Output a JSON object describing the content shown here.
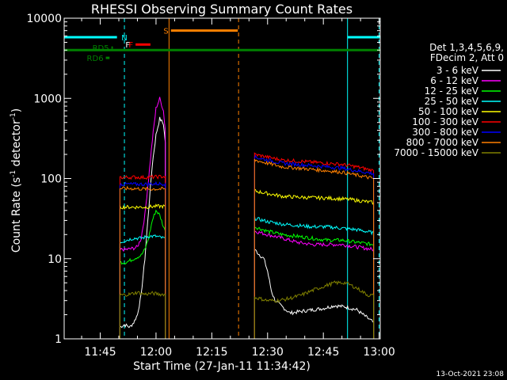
{
  "chart_data": {
    "type": "line",
    "title": "RHESSI Observing Summary Count Rates",
    "xlabel": "Start Time (27-Jan-11 11:34:42)",
    "ylabel_main": "Count Rate (s",
    "ylabel_sup1": "-1",
    "ylabel_mid": " detector",
    "ylabel_sup2": "-1",
    "ylabel_end": ")",
    "y_scale": "log",
    "ylim": [
      1,
      10000
    ],
    "xlim_minutes": [
      -24.7,
      60.3
    ],
    "x_ticks": [
      {
        "t": -15,
        "label": "11:45"
      },
      {
        "t": 0,
        "label": "12:00"
      },
      {
        "t": 15,
        "label": "12:15"
      },
      {
        "t": 30,
        "label": "12:30"
      },
      {
        "t": 45,
        "label": "12:45"
      },
      {
        "t": 60,
        "label": "13:00"
      }
    ],
    "y_ticks": [
      {
        "v": 1,
        "label": "1"
      },
      {
        "v": 10,
        "label": "10"
      },
      {
        "v": 100,
        "label": "100"
      },
      {
        "v": 1000,
        "label": "1000"
      },
      {
        "v": 10000,
        "label": "10000"
      }
    ],
    "legend_position": "right",
    "legend_header": [
      "Det 1,3,4,5,6,9,",
      "FDecim 2, Att 0"
    ],
    "series": [
      {
        "name": "3 - 6 keV",
        "color": "#ffffff",
        "segments": [
          [
            [
              -9.7,
              1.4
            ],
            [
              -8.5,
              1.5
            ],
            [
              -7,
              1.4
            ],
            [
              -6,
              1.6
            ],
            [
              -5,
              2.0
            ],
            [
              -4,
              3.5
            ],
            [
              -3,
              10
            ],
            [
              -2,
              40
            ],
            [
              -1,
              150
            ],
            [
              0,
              350
            ],
            [
              1,
              560
            ],
            [
              2,
              480
            ],
            [
              2.5,
              280
            ]
          ],
          [
            [
              26.5,
              13
            ],
            [
              28,
              11
            ],
            [
              29,
              10
            ],
            [
              30,
              7
            ],
            [
              31,
              4
            ],
            [
              32,
              3
            ],
            [
              34,
              2.5
            ],
            [
              36,
              2.1
            ],
            [
              39,
              2.2
            ],
            [
              42,
              2.3
            ],
            [
              45,
              2.4
            ],
            [
              48,
              2.6
            ],
            [
              51,
              2.5
            ],
            [
              54,
              2.3
            ],
            [
              57,
              1.8
            ],
            [
              58.5,
              1.6
            ]
          ]
        ]
      },
      {
        "name": "6 - 12 keV",
        "color": "#ff00ff",
        "segments": [
          [
            [
              -9.7,
              13
            ],
            [
              -8,
              13
            ],
            [
              -6,
              13.5
            ],
            [
              -5,
              14
            ],
            [
              -4,
              18
            ],
            [
              -3,
              35
            ],
            [
              -2,
              100
            ],
            [
              -1,
              300
            ],
            [
              0,
              750
            ],
            [
              1,
              1000
            ],
            [
              2,
              700
            ],
            [
              2.5,
              400
            ]
          ],
          [
            [
              26.5,
              22
            ],
            [
              30,
              20
            ],
            [
              34,
              18
            ],
            [
              38,
              16
            ],
            [
              42,
              15
            ],
            [
              46,
              15
            ],
            [
              50,
              15
            ],
            [
              54,
              14
            ],
            [
              58.5,
              13
            ]
          ]
        ]
      },
      {
        "name": "12 - 25 keV",
        "color": "#00ff00",
        "segments": [
          [
            [
              -9.7,
              9
            ],
            [
              -8,
              9
            ],
            [
              -6,
              10
            ],
            [
              -4,
              11
            ],
            [
              -3,
              13
            ],
            [
              -2,
              18
            ],
            [
              -1,
              30
            ],
            [
              0,
              40
            ],
            [
              1,
              35
            ],
            [
              2,
              25
            ],
            [
              2.5,
              22
            ]
          ],
          [
            [
              26.5,
              25
            ],
            [
              30,
              22
            ],
            [
              34,
              20
            ],
            [
              38,
              19
            ],
            [
              42,
              18
            ],
            [
              46,
              17
            ],
            [
              50,
              17
            ],
            [
              54,
              16
            ],
            [
              58.5,
              15
            ]
          ]
        ]
      },
      {
        "name": "25 - 50 keV",
        "color": "#00ffff",
        "segments": [
          [
            [
              -9.7,
              16
            ],
            [
              -8,
              17
            ],
            [
              -6,
              18
            ],
            [
              -4,
              18
            ],
            [
              -2,
              19
            ],
            [
              0,
              19
            ],
            [
              2,
              18
            ],
            [
              2.5,
              18
            ]
          ],
          [
            [
              26.5,
              32
            ],
            [
              30,
              29
            ],
            [
              34,
              27
            ],
            [
              38,
              26
            ],
            [
              42,
              25
            ],
            [
              46,
              25
            ],
            [
              50,
              24
            ],
            [
              54,
              23
            ],
            [
              58.5,
              21
            ]
          ]
        ]
      },
      {
        "name": "50 - 100 keV",
        "color": "#ffff00",
        "segments": [
          [
            [
              -9.7,
              44
            ],
            [
              -6,
              44
            ],
            [
              -3,
              44
            ],
            [
              0,
              45
            ],
            [
              2.5,
              45
            ]
          ],
          [
            [
              26.5,
              70
            ],
            [
              30,
              65
            ],
            [
              34,
              60
            ],
            [
              40,
              58
            ],
            [
              46,
              57
            ],
            [
              52,
              55
            ],
            [
              58.5,
              50
            ]
          ]
        ]
      },
      {
        "name": "100 - 300 keV",
        "color": "#ff0000",
        "segments": [
          [
            [
              -9.7,
              103
            ],
            [
              -6,
              104
            ],
            [
              -3,
              103
            ],
            [
              0,
              105
            ],
            [
              2.5,
              106
            ]
          ],
          [
            [
              26.5,
              200
            ],
            [
              30,
              185
            ],
            [
              34,
              170
            ],
            [
              38,
              165
            ],
            [
              42,
              160
            ],
            [
              46,
              155
            ],
            [
              50,
              150
            ],
            [
              54,
              140
            ],
            [
              58.5,
              125
            ]
          ]
        ]
      },
      {
        "name": "300 - 800 keV",
        "color": "#0000ff",
        "segments": [
          [
            [
              -9.7,
              85
            ],
            [
              -6,
              85
            ],
            [
              -3,
              85
            ],
            [
              0,
              86
            ],
            [
              2.5,
              86
            ]
          ],
          [
            [
              26.5,
              185
            ],
            [
              30,
              170
            ],
            [
              34,
              155
            ],
            [
              38,
              150
            ],
            [
              42,
              145
            ],
            [
              46,
              140
            ],
            [
              50,
              135
            ],
            [
              54,
              125
            ],
            [
              58.5,
              115
            ]
          ]
        ]
      },
      {
        "name": "800 - 7000 keV",
        "color": "#ff8000",
        "segments": [
          [
            [
              -9.7,
              75
            ],
            [
              -6,
              75
            ],
            [
              -3,
              74
            ],
            [
              0,
              74
            ],
            [
              2.5,
              74
            ]
          ],
          [
            [
              26.5,
              170
            ],
            [
              30,
              155
            ],
            [
              34,
              140
            ],
            [
              38,
              135
            ],
            [
              42,
              130
            ],
            [
              46,
              125
            ],
            [
              50,
              120
            ],
            [
              54,
              110
            ],
            [
              58.5,
              100
            ]
          ]
        ]
      },
      {
        "name": "7000 - 15000 keV",
        "color": "#808000",
        "segments": [
          [
            [
              -9.7,
              3.5
            ],
            [
              -7,
              3.6
            ],
            [
              -5,
              3.8
            ],
            [
              -3,
              3.6
            ],
            [
              -1,
              3.7
            ],
            [
              1,
              3.6
            ],
            [
              2.5,
              3.6
            ]
          ],
          [
            [
              26.5,
              3.3
            ],
            [
              30,
              3.0
            ],
            [
              33,
              3.0
            ],
            [
              36,
              3.2
            ],
            [
              39,
              3.5
            ],
            [
              42,
              4.0
            ],
            [
              45,
              4.5
            ],
            [
              48,
              5.0
            ],
            [
              51,
              5.0
            ],
            [
              54,
              4.3
            ],
            [
              57,
              3.5
            ],
            [
              58.5,
              3.5
            ]
          ]
        ]
      }
    ],
    "bars": [
      {
        "label": "",
        "color": "#00ffff",
        "t0": -24.7,
        "t1": -10.5,
        "y": 5800
      },
      {
        "label": "",
        "color": "#00ffff",
        "t0": 51.5,
        "t1": 60.3,
        "y": 5800
      },
      {
        "label": "S",
        "color": "#ff8000",
        "t0": 4.0,
        "t1": 22.0,
        "y": 7000
      },
      {
        "label": "F",
        "color": "#ff0000",
        "t0": -5.5,
        "t1": -1.5,
        "y": 4700
      },
      {
        "label": "",
        "color": "#008000",
        "t0": -24.7,
        "t1": 60.3,
        "y": 4000
      },
      {
        "label": "RD6",
        "color": "#008000",
        "t0": -13.5,
        "t1": -12.5,
        "y": 3200
      },
      {
        "label": "RD5",
        "color": "#008000",
        "t0": -12.0,
        "t1": -11.6,
        "y": 4300
      }
    ],
    "markers": [
      {
        "label": "N",
        "color": "#00ffff",
        "at": -8.5
      },
      {
        "label": "F",
        "color": "#ffffff",
        "at": -7.6
      }
    ],
    "vlines": [
      {
        "t": -24.7,
        "color": "#00ffff",
        "style": "solid"
      },
      {
        "t": -8.5,
        "color": "#00ffff",
        "style": "dashed"
      },
      {
        "t": 3.5,
        "color": "#ff8000",
        "style": "solid"
      },
      {
        "t": 22.2,
        "color": "#ff8000",
        "style": "dashed"
      },
      {
        "t": 51.5,
        "color": "#00ffff",
        "style": "solid"
      },
      {
        "t": 60.0,
        "color": "#00ffff",
        "style": "dashed"
      }
    ],
    "timestamp": "13-Oct-2021 23:08"
  }
}
